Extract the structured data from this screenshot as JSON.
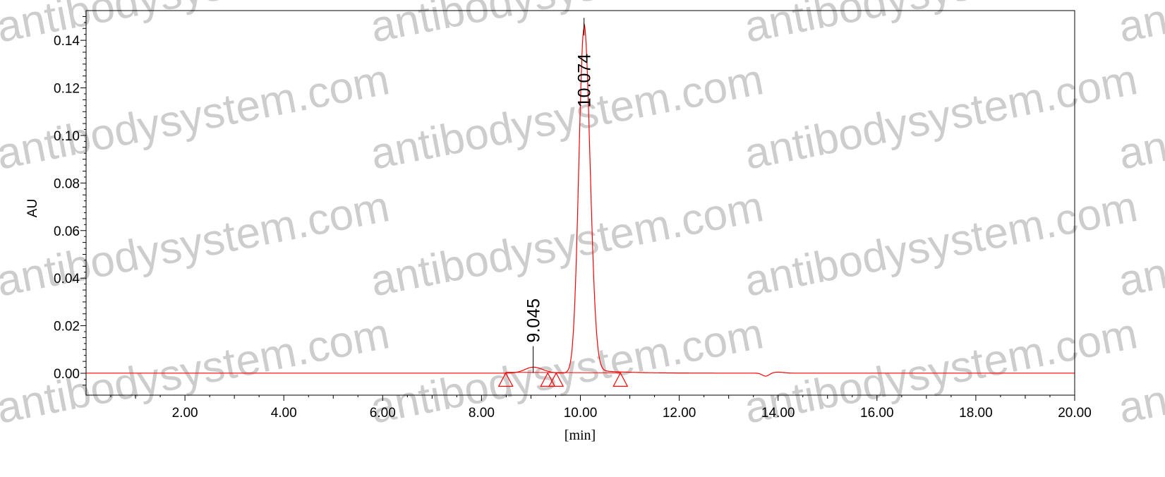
{
  "chart_data": {
    "type": "line",
    "title": "",
    "xlabel": "[min]",
    "ylabel": "AU",
    "xlim": [
      0,
      20
    ],
    "ylim": [
      -0.0092,
      0.1525
    ],
    "x_ticks": [
      "2.00",
      "4.00",
      "6.00",
      "8.00",
      "10.00",
      "12.00",
      "14.00",
      "16.00",
      "18.00",
      "20.00"
    ],
    "y_ticks": [
      "0.00",
      "0.02",
      "0.04",
      "0.06",
      "0.08",
      "0.10",
      "0.12",
      "0.14"
    ],
    "grid": false,
    "series_color": "#ff0000",
    "peaks": [
      {
        "label": "9.045",
        "retention_time": 9.045,
        "height": 0.0025,
        "width_sigma": 0.17
      },
      {
        "label": "10.074",
        "retention_time": 10.074,
        "height": 0.145,
        "width_sigma": 0.105
      }
    ],
    "baseline_disturbance": {
      "x": 13.75,
      "height": -0.0013
    },
    "integration_markers": [
      8.49,
      9.34,
      9.51,
      10.81
    ],
    "watermark": "antibodysystem.com"
  }
}
